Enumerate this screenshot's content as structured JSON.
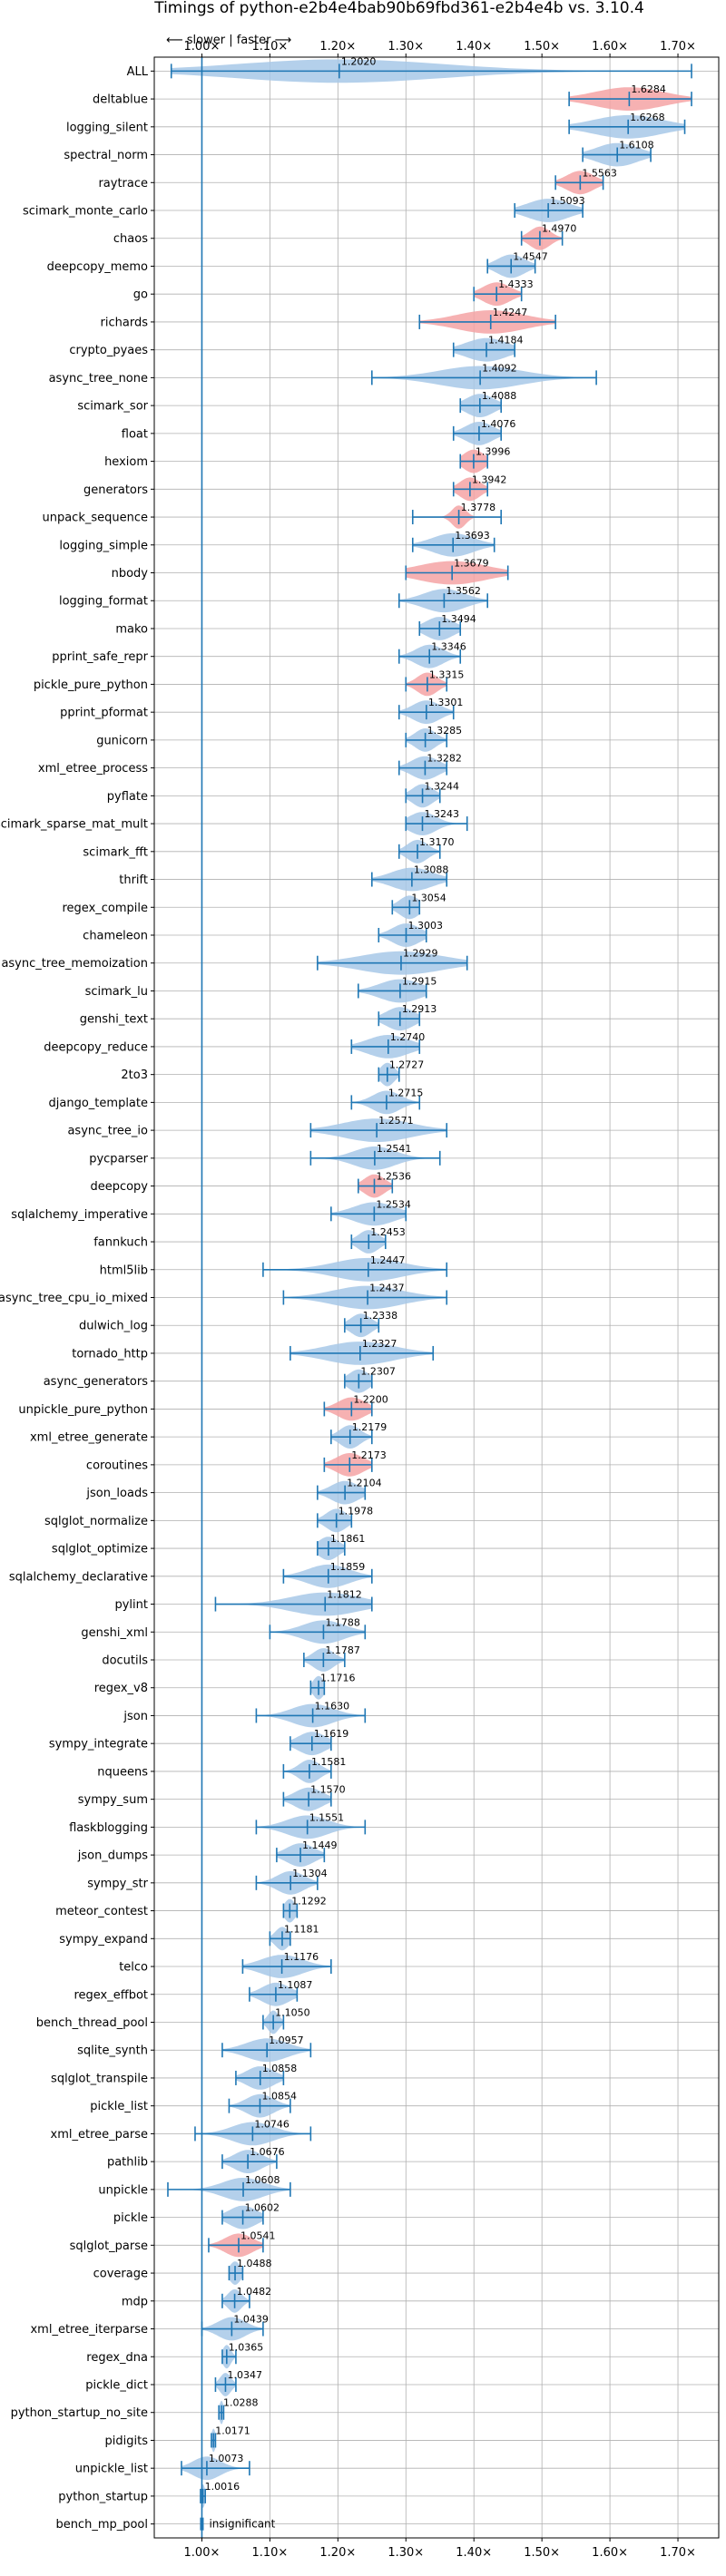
{
  "chart_data": {
    "type": "violin",
    "title": "Timings of python-e2b4e4bab90b69fbd361-e2b4e4b vs. 3.10.4",
    "speed_hint": "⟵ slower | faster ⟶",
    "xlabel": "",
    "ylabel": "",
    "xlim": [
      0.93,
      1.76
    ],
    "xticks": [
      "1.00×",
      "1.10×",
      "1.20×",
      "1.30×",
      "1.40×",
      "1.50×",
      "1.60×",
      "1.70×"
    ],
    "xtick_values": [
      1.0,
      1.1,
      1.2,
      1.3,
      1.4,
      1.5,
      1.6,
      1.7
    ],
    "reference_line": 1.0,
    "grid": true,
    "colors": {
      "faster": "#a7c8e7",
      "slower": "#f5a3a5",
      "line": "#1f77b4",
      "grid": "#b0b0b0"
    },
    "insignificant_label": "insignificant",
    "benchmarks": [
      {
        "name": "ALL",
        "value_label": "1.2020",
        "mean": 1.202,
        "min": 0.955,
        "max": 1.72,
        "spread": 0.15,
        "color": "faster"
      },
      {
        "name": "deltablue",
        "value_label": "1.6284",
        "mean": 1.6284,
        "min": 1.54,
        "max": 1.72,
        "spread": 0.05,
        "color": "slower"
      },
      {
        "name": "logging_silent",
        "value_label": "1.6268",
        "mean": 1.6268,
        "min": 1.54,
        "max": 1.71,
        "spread": 0.05,
        "color": "faster"
      },
      {
        "name": "spectral_norm",
        "value_label": "1.6108",
        "mean": 1.6108,
        "min": 1.56,
        "max": 1.66,
        "spread": 0.03,
        "color": "faster"
      },
      {
        "name": "raytrace",
        "value_label": "1.5563",
        "mean": 1.5563,
        "min": 1.52,
        "max": 1.59,
        "spread": 0.02,
        "color": "slower"
      },
      {
        "name": "scimark_monte_carlo",
        "value_label": "1.5093",
        "mean": 1.5093,
        "min": 1.46,
        "max": 1.56,
        "spread": 0.03,
        "color": "faster"
      },
      {
        "name": "chaos",
        "value_label": "1.4970",
        "mean": 1.497,
        "min": 1.47,
        "max": 1.53,
        "spread": 0.015,
        "color": "slower"
      },
      {
        "name": "deepcopy_memo",
        "value_label": "1.4547",
        "mean": 1.4547,
        "min": 1.42,
        "max": 1.49,
        "spread": 0.02,
        "color": "faster"
      },
      {
        "name": "go",
        "value_label": "1.4333",
        "mean": 1.4333,
        "min": 1.4,
        "max": 1.47,
        "spread": 0.02,
        "color": "slower"
      },
      {
        "name": "richards",
        "value_label": "1.4247",
        "mean": 1.4247,
        "min": 1.32,
        "max": 1.52,
        "spread": 0.05,
        "color": "slower"
      },
      {
        "name": "crypto_pyaes",
        "value_label": "1.4184",
        "mean": 1.4184,
        "min": 1.37,
        "max": 1.46,
        "spread": 0.03,
        "color": "faster"
      },
      {
        "name": "async_tree_none",
        "value_label": "1.4092",
        "mean": 1.4092,
        "min": 1.25,
        "max": 1.58,
        "spread": 0.06,
        "color": "faster"
      },
      {
        "name": "scimark_sor",
        "value_label": "1.4088",
        "mean": 1.4088,
        "min": 1.38,
        "max": 1.44,
        "spread": 0.02,
        "color": "faster"
      },
      {
        "name": "float",
        "value_label": "1.4076",
        "mean": 1.4076,
        "min": 1.37,
        "max": 1.44,
        "spread": 0.02,
        "color": "faster"
      },
      {
        "name": "hexiom",
        "value_label": "1.3996",
        "mean": 1.3996,
        "min": 1.38,
        "max": 1.42,
        "spread": 0.015,
        "color": "slower"
      },
      {
        "name": "generators",
        "value_label": "1.3942",
        "mean": 1.3942,
        "min": 1.37,
        "max": 1.42,
        "spread": 0.015,
        "color": "slower"
      },
      {
        "name": "unpack_sequence",
        "value_label": "1.3778",
        "mean": 1.3778,
        "min": 1.31,
        "max": 1.44,
        "spread": 0.01,
        "color": "slower"
      },
      {
        "name": "logging_simple",
        "value_label": "1.3693",
        "mean": 1.3693,
        "min": 1.31,
        "max": 1.43,
        "spread": 0.03,
        "color": "faster"
      },
      {
        "name": "nbody",
        "value_label": "1.3679",
        "mean": 1.3679,
        "min": 1.3,
        "max": 1.45,
        "spread": 0.05,
        "color": "slower"
      },
      {
        "name": "logging_format",
        "value_label": "1.3562",
        "mean": 1.3562,
        "min": 1.29,
        "max": 1.42,
        "spread": 0.03,
        "color": "faster"
      },
      {
        "name": "mako",
        "value_label": "1.3494",
        "mean": 1.3494,
        "min": 1.32,
        "max": 1.38,
        "spread": 0.02,
        "color": "faster"
      },
      {
        "name": "pprint_safe_repr",
        "value_label": "1.3346",
        "mean": 1.3346,
        "min": 1.29,
        "max": 1.38,
        "spread": 0.02,
        "color": "faster"
      },
      {
        "name": "pickle_pure_python",
        "value_label": "1.3315",
        "mean": 1.3315,
        "min": 1.3,
        "max": 1.36,
        "spread": 0.015,
        "color": "slower"
      },
      {
        "name": "pprint_pformat",
        "value_label": "1.3301",
        "mean": 1.3301,
        "min": 1.29,
        "max": 1.37,
        "spread": 0.02,
        "color": "faster"
      },
      {
        "name": "gunicorn",
        "value_label": "1.3285",
        "mean": 1.3285,
        "min": 1.3,
        "max": 1.36,
        "spread": 0.015,
        "color": "faster"
      },
      {
        "name": "xml_etree_process",
        "value_label": "1.3282",
        "mean": 1.3282,
        "min": 1.29,
        "max": 1.36,
        "spread": 0.02,
        "color": "faster"
      },
      {
        "name": "pyflate",
        "value_label": "1.3244",
        "mean": 1.3244,
        "min": 1.3,
        "max": 1.35,
        "spread": 0.015,
        "color": "faster"
      },
      {
        "name": "scimark_sparse_mat_mult",
        "value_label": "1.3243",
        "mean": 1.3243,
        "min": 1.3,
        "max": 1.39,
        "spread": 0.02,
        "color": "faster"
      },
      {
        "name": "scimark_fft",
        "value_label": "1.3170",
        "mean": 1.317,
        "min": 1.29,
        "max": 1.35,
        "spread": 0.015,
        "color": "faster"
      },
      {
        "name": "thrift",
        "value_label": "1.3088",
        "mean": 1.3088,
        "min": 1.25,
        "max": 1.36,
        "spread": 0.03,
        "color": "faster"
      },
      {
        "name": "regex_compile",
        "value_label": "1.3054",
        "mean": 1.3054,
        "min": 1.28,
        "max": 1.32,
        "spread": 0.015,
        "color": "faster"
      },
      {
        "name": "chameleon",
        "value_label": "1.3003",
        "mean": 1.3003,
        "min": 1.26,
        "max": 1.33,
        "spread": 0.02,
        "color": "faster"
      },
      {
        "name": "async_tree_memoization",
        "value_label": "1.2929",
        "mean": 1.2929,
        "min": 1.17,
        "max": 1.39,
        "spread": 0.06,
        "color": "faster"
      },
      {
        "name": "scimark_lu",
        "value_label": "1.2915",
        "mean": 1.2915,
        "min": 1.23,
        "max": 1.33,
        "spread": 0.03,
        "color": "faster"
      },
      {
        "name": "genshi_text",
        "value_label": "1.2913",
        "mean": 1.2913,
        "min": 1.26,
        "max": 1.32,
        "spread": 0.02,
        "color": "faster"
      },
      {
        "name": "deepcopy_reduce",
        "value_label": "1.2740",
        "mean": 1.274,
        "min": 1.22,
        "max": 1.32,
        "spread": 0.03,
        "color": "faster"
      },
      {
        "name": "2to3",
        "value_label": "1.2727",
        "mean": 1.2727,
        "min": 1.26,
        "max": 1.29,
        "spread": 0.01,
        "color": "faster"
      },
      {
        "name": "django_template",
        "value_label": "1.2715",
        "mean": 1.2715,
        "min": 1.22,
        "max": 1.32,
        "spread": 0.02,
        "color": "faster"
      },
      {
        "name": "async_tree_io",
        "value_label": "1.2571",
        "mean": 1.2571,
        "min": 1.16,
        "max": 1.36,
        "spread": 0.05,
        "color": "faster"
      },
      {
        "name": "pycparser",
        "value_label": "1.2541",
        "mean": 1.2541,
        "min": 1.16,
        "max": 1.35,
        "spread": 0.03,
        "color": "faster"
      },
      {
        "name": "deepcopy",
        "value_label": "1.2536",
        "mean": 1.2536,
        "min": 1.23,
        "max": 1.28,
        "spread": 0.015,
        "color": "slower"
      },
      {
        "name": "sqlalchemy_imperative",
        "value_label": "1.2534",
        "mean": 1.2534,
        "min": 1.19,
        "max": 1.3,
        "spread": 0.03,
        "color": "faster"
      },
      {
        "name": "fannkuch",
        "value_label": "1.2453",
        "mean": 1.2453,
        "min": 1.22,
        "max": 1.27,
        "spread": 0.015,
        "color": "faster"
      },
      {
        "name": "html5lib",
        "value_label": "1.2447",
        "mean": 1.2447,
        "min": 1.09,
        "max": 1.36,
        "spread": 0.05,
        "color": "faster"
      },
      {
        "name": "async_tree_cpu_io_mixed",
        "value_label": "1.2437",
        "mean": 1.2437,
        "min": 1.12,
        "max": 1.36,
        "spread": 0.05,
        "color": "faster"
      },
      {
        "name": "dulwich_log",
        "value_label": "1.2338",
        "mean": 1.2338,
        "min": 1.21,
        "max": 1.26,
        "spread": 0.015,
        "color": "faster"
      },
      {
        "name": "tornado_http",
        "value_label": "1.2327",
        "mean": 1.2327,
        "min": 1.13,
        "max": 1.34,
        "spread": 0.05,
        "color": "faster"
      },
      {
        "name": "async_generators",
        "value_label": "1.2307",
        "mean": 1.2307,
        "min": 1.21,
        "max": 1.25,
        "spread": 0.015,
        "color": "faster"
      },
      {
        "name": "unpickle_pure_python",
        "value_label": "1.2200",
        "mean": 1.22,
        "min": 1.18,
        "max": 1.25,
        "spread": 0.02,
        "color": "slower"
      },
      {
        "name": "xml_etree_generate",
        "value_label": "1.2179",
        "mean": 1.2179,
        "min": 1.19,
        "max": 1.25,
        "spread": 0.015,
        "color": "faster"
      },
      {
        "name": "coroutines",
        "value_label": "1.2173",
        "mean": 1.2173,
        "min": 1.18,
        "max": 1.25,
        "spread": 0.02,
        "color": "slower"
      },
      {
        "name": "json_loads",
        "value_label": "1.2104",
        "mean": 1.2104,
        "min": 1.17,
        "max": 1.24,
        "spread": 0.02,
        "color": "faster"
      },
      {
        "name": "sqlglot_normalize",
        "value_label": "1.1978",
        "mean": 1.1978,
        "min": 1.17,
        "max": 1.22,
        "spread": 0.015,
        "color": "faster"
      },
      {
        "name": "sqlglot_optimize",
        "value_label": "1.1861",
        "mean": 1.1861,
        "min": 1.17,
        "max": 1.21,
        "spread": 0.015,
        "color": "faster"
      },
      {
        "name": "sqlalchemy_declarative",
        "value_label": "1.1859",
        "mean": 1.1859,
        "min": 1.12,
        "max": 1.25,
        "spread": 0.03,
        "color": "faster"
      },
      {
        "name": "pylint",
        "value_label": "1.1812",
        "mean": 1.1812,
        "min": 1.02,
        "max": 1.25,
        "spread": 0.05,
        "color": "faster"
      },
      {
        "name": "genshi_xml",
        "value_label": "1.1788",
        "mean": 1.1788,
        "min": 1.1,
        "max": 1.24,
        "spread": 0.03,
        "color": "faster"
      },
      {
        "name": "docutils",
        "value_label": "1.1787",
        "mean": 1.1787,
        "min": 1.15,
        "max": 1.21,
        "spread": 0.015,
        "color": "faster"
      },
      {
        "name": "regex_v8",
        "value_label": "1.1716",
        "mean": 1.1716,
        "min": 1.16,
        "max": 1.18,
        "spread": 0.008,
        "color": "faster"
      },
      {
        "name": "json",
        "value_label": "1.1630",
        "mean": 1.163,
        "min": 1.08,
        "max": 1.24,
        "spread": 0.03,
        "color": "faster"
      },
      {
        "name": "sympy_integrate",
        "value_label": "1.1619",
        "mean": 1.1619,
        "min": 1.13,
        "max": 1.19,
        "spread": 0.02,
        "color": "faster"
      },
      {
        "name": "nqueens",
        "value_label": "1.1581",
        "mean": 1.1581,
        "min": 1.12,
        "max": 1.19,
        "spread": 0.015,
        "color": "faster"
      },
      {
        "name": "sympy_sum",
        "value_label": "1.1570",
        "mean": 1.157,
        "min": 1.12,
        "max": 1.19,
        "spread": 0.02,
        "color": "faster"
      },
      {
        "name": "flaskblogging",
        "value_label": "1.1551",
        "mean": 1.1551,
        "min": 1.08,
        "max": 1.24,
        "spread": 0.03,
        "color": "faster"
      },
      {
        "name": "json_dumps",
        "value_label": "1.1449",
        "mean": 1.1449,
        "min": 1.11,
        "max": 1.18,
        "spread": 0.02,
        "color": "faster"
      },
      {
        "name": "sympy_str",
        "value_label": "1.1304",
        "mean": 1.1304,
        "min": 1.08,
        "max": 1.17,
        "spread": 0.02,
        "color": "faster"
      },
      {
        "name": "meteor_contest",
        "value_label": "1.1292",
        "mean": 1.1292,
        "min": 1.12,
        "max": 1.14,
        "spread": 0.008,
        "color": "faster"
      },
      {
        "name": "sympy_expand",
        "value_label": "1.1181",
        "mean": 1.1181,
        "min": 1.1,
        "max": 1.13,
        "spread": 0.01,
        "color": "faster"
      },
      {
        "name": "telco",
        "value_label": "1.1176",
        "mean": 1.1176,
        "min": 1.06,
        "max": 1.19,
        "spread": 0.03,
        "color": "faster"
      },
      {
        "name": "regex_effbot",
        "value_label": "1.1087",
        "mean": 1.1087,
        "min": 1.07,
        "max": 1.14,
        "spread": 0.02,
        "color": "faster"
      },
      {
        "name": "bench_thread_pool",
        "value_label": "1.1050",
        "mean": 1.105,
        "min": 1.09,
        "max": 1.12,
        "spread": 0.008,
        "color": "faster"
      },
      {
        "name": "sqlite_synth",
        "value_label": "1.0957",
        "mean": 1.0957,
        "min": 1.03,
        "max": 1.16,
        "spread": 0.03,
        "color": "faster"
      },
      {
        "name": "sqlglot_transpile",
        "value_label": "1.0858",
        "mean": 1.0858,
        "min": 1.05,
        "max": 1.12,
        "spread": 0.02,
        "color": "faster"
      },
      {
        "name": "pickle_list",
        "value_label": "1.0854",
        "mean": 1.0854,
        "min": 1.04,
        "max": 1.13,
        "spread": 0.02,
        "color": "faster"
      },
      {
        "name": "xml_etree_parse",
        "value_label": "1.0746",
        "mean": 1.0746,
        "min": 0.99,
        "max": 1.16,
        "spread": 0.03,
        "color": "faster"
      },
      {
        "name": "pathlib",
        "value_label": "1.0676",
        "mean": 1.0676,
        "min": 1.03,
        "max": 1.11,
        "spread": 0.02,
        "color": "faster"
      },
      {
        "name": "unpickle",
        "value_label": "1.0608",
        "mean": 1.0608,
        "min": 0.95,
        "max": 1.13,
        "spread": 0.03,
        "color": "faster"
      },
      {
        "name": "pickle",
        "value_label": "1.0602",
        "mean": 1.0602,
        "min": 1.03,
        "max": 1.09,
        "spread": 0.02,
        "color": "faster"
      },
      {
        "name": "sqlglot_parse",
        "value_label": "1.0541",
        "mean": 1.0541,
        "min": 1.01,
        "max": 1.09,
        "spread": 0.02,
        "color": "slower"
      },
      {
        "name": "coverage",
        "value_label": "1.0488",
        "mean": 1.0488,
        "min": 1.04,
        "max": 1.06,
        "spread": 0.008,
        "color": "faster"
      },
      {
        "name": "mdp",
        "value_label": "1.0482",
        "mean": 1.0482,
        "min": 1.03,
        "max": 1.07,
        "spread": 0.01,
        "color": "faster"
      },
      {
        "name": "xml_etree_iterparse",
        "value_label": "1.0439",
        "mean": 1.0439,
        "min": 1.0,
        "max": 1.09,
        "spread": 0.02,
        "color": "faster"
      },
      {
        "name": "regex_dna",
        "value_label": "1.0365",
        "mean": 1.0365,
        "min": 1.03,
        "max": 1.05,
        "spread": 0.006,
        "color": "faster"
      },
      {
        "name": "pickle_dict",
        "value_label": "1.0347",
        "mean": 1.0347,
        "min": 1.02,
        "max": 1.05,
        "spread": 0.008,
        "color": "faster"
      },
      {
        "name": "python_startup_no_site",
        "value_label": "1.0288",
        "mean": 1.0288,
        "min": 1.025,
        "max": 1.032,
        "spread": 0.003,
        "color": "faster"
      },
      {
        "name": "pidigits",
        "value_label": "1.0171",
        "mean": 1.0171,
        "min": 1.014,
        "max": 1.02,
        "spread": 0.003,
        "color": "faster"
      },
      {
        "name": "unpickle_list",
        "value_label": "1.0073",
        "mean": 1.0073,
        "min": 0.97,
        "max": 1.07,
        "spread": 0.02,
        "color": "faster"
      },
      {
        "name": "python_startup",
        "value_label": "1.0016",
        "mean": 1.0016,
        "min": 0.998,
        "max": 1.005,
        "spread": 0.003,
        "color": "faster"
      },
      {
        "name": "bench_mp_pool",
        "value_label": "",
        "mean": 1.0,
        "min": 1.0,
        "max": 1.0,
        "spread": 0.0,
        "color": "insignificant"
      }
    ]
  }
}
